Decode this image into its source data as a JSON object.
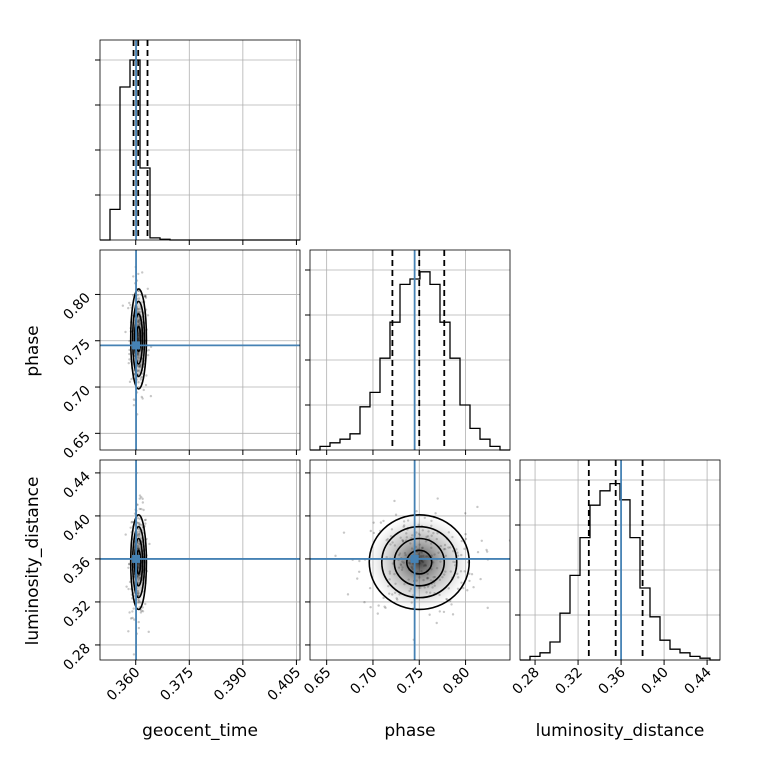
{
  "chart_data": {
    "type": "corner",
    "parameters": [
      {
        "name": "geocent_time",
        "label": "geocent_time",
        "range": [
          0.35,
          0.406
        ],
        "ticks": [
          0.36,
          0.375,
          0.39,
          0.405
        ],
        "tick_labels": [
          "0.360",
          "0.375",
          "0.390",
          "0.405"
        ],
        "truth": 0.3601,
        "quantiles": [
          0.3594,
          0.3607,
          0.3633
        ]
      },
      {
        "name": "phase",
        "label": "phase",
        "range": [
          0.632,
          0.848
        ],
        "ticks": [
          0.65,
          0.7,
          0.75,
          0.8
        ],
        "tick_labels": [
          "0.65",
          "0.70",
          "0.75",
          "0.80"
        ],
        "truth": 0.745,
        "quantiles": [
          0.721,
          0.75,
          0.777
        ]
      },
      {
        "name": "luminosity_distance",
        "label": "luminosity_distance",
        "range": [
          0.266,
          0.452
        ],
        "ticks": [
          0.28,
          0.32,
          0.36,
          0.4,
          0.44
        ],
        "tick_labels": [
          "0.28",
          "0.32",
          "0.36",
          "0.40",
          "0.44"
        ],
        "truth": 0.36,
        "quantiles": [
          0.33,
          0.355,
          0.38
        ]
      }
    ],
    "histograms": {
      "geocent_time": {
        "bin_edges": [
          0.35,
          0.3528,
          0.3556,
          0.3584,
          0.3612,
          0.364,
          0.3668,
          0.3696,
          0.3724,
          0.3752,
          0.378,
          0.406
        ],
        "counts": [
          0,
          0.17,
          0.85,
          1.0,
          0.4,
          0.012,
          0.004,
          0,
          0,
          0,
          0
        ]
      },
      "phase": {
        "bin_edges": [
          0.632,
          0.6428,
          0.6536,
          0.6644,
          0.6752,
          0.686,
          0.6968,
          0.7076,
          0.7184,
          0.7292,
          0.74,
          0.7508,
          0.7616,
          0.7724,
          0.7832,
          0.794,
          0.8048,
          0.8156,
          0.8264,
          0.8372,
          0.848
        ],
        "counts": [
          0,
          0.02,
          0.04,
          0.06,
          0.09,
          0.24,
          0.32,
          0.51,
          0.71,
          0.92,
          0.95,
          0.99,
          0.92,
          0.71,
          0.51,
          0.25,
          0.12,
          0.06,
          0.02,
          0
        ]
      },
      "luminosity_distance": {
        "bin_edges": [
          0.266,
          0.2753,
          0.2846,
          0.2939,
          0.3032,
          0.3125,
          0.3218,
          0.3311,
          0.3404,
          0.3497,
          0.359,
          0.3683,
          0.3776,
          0.3869,
          0.3962,
          0.4055,
          0.4148,
          0.4241,
          0.4334,
          0.4427,
          0.452
        ],
        "counts": [
          0,
          0.02,
          0.04,
          0.1,
          0.26,
          0.47,
          0.68,
          0.86,
          0.94,
          0.98,
          0.89,
          0.68,
          0.4,
          0.24,
          0.11,
          0.06,
          0.04,
          0.02,
          0.01,
          0
        ]
      }
    },
    "contours_2d": [
      {
        "x_param": "geocent_time",
        "y_param": "phase",
        "center": [
          0.3608,
          0.752
        ],
        "sigma": [
          0.0011,
          0.027
        ]
      },
      {
        "x_param": "geocent_time",
        "y_param": "luminosity_distance",
        "center": [
          0.3608,
          0.357
        ],
        "sigma": [
          0.0011,
          0.022
        ]
      },
      {
        "x_param": "phase",
        "y_param": "luminosity_distance",
        "center": [
          0.75,
          0.357
        ],
        "sigma": [
          0.027,
          0.022
        ]
      }
    ],
    "contour_levels_sigma": [
      0.5,
      1.0,
      1.5,
      2.0
    ],
    "truth_color": "#4682b4",
    "grid": true
  }
}
